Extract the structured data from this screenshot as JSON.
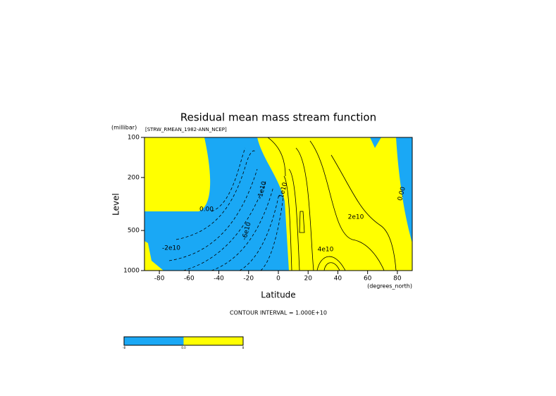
{
  "chart_data": {
    "type": "contour",
    "title": "Residual mean mass stream function",
    "subtitle": "[STRW_RMEAN_1982-ANN_NCEP]",
    "y_units": "(millibar)",
    "ylabel": "Level",
    "xlabel": "Latitude",
    "x_units": "(degrees_north)",
    "note": "CONTOUR INTERVAL = 1.000E+10",
    "xlim": [
      -90,
      90
    ],
    "xticks": [
      -80,
      -60,
      -40,
      -20,
      0,
      20,
      40,
      60,
      80
    ],
    "ylim": [
      100,
      1000
    ],
    "yticks": [
      100,
      200,
      500,
      1000
    ],
    "ylog": true,
    "yreversed": true,
    "fill_colors": [
      "#1aa8f5",
      "#ffff00"
    ],
    "contour_labels": [
      "0.00",
      "-2e10",
      "-6e10",
      "-1e10",
      "1e10",
      "2e10",
      "4e10",
      "0.00"
    ],
    "colorbar": {
      "colors": [
        "#1aa8f5",
        "#ffff00"
      ],
      "labels": [
        "-8",
        "0.0",
        "8"
      ]
    }
  }
}
